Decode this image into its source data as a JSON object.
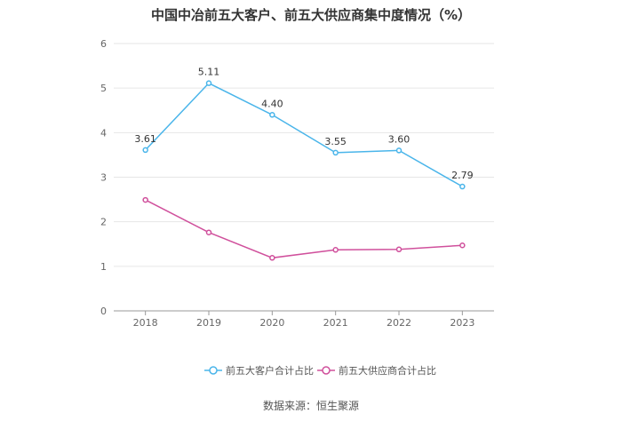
{
  "chart_data": {
    "type": "line",
    "title": "中国中冶前五大客户、前五大供应商集中度情况（%）",
    "categories": [
      "2018",
      "2019",
      "2020",
      "2021",
      "2022",
      "2023"
    ],
    "ylim": [
      0,
      6
    ],
    "yticks": [
      "0",
      "1",
      "2",
      "3",
      "4",
      "5",
      "6"
    ],
    "grid": true,
    "legend_position": "bottom",
    "series": [
      {
        "name": "前五大客户合计占比",
        "values": [
          3.61,
          5.11,
          4.4,
          3.55,
          3.6,
          2.79
        ],
        "labels": [
          "3.61",
          "5.11",
          "4.40",
          "3.55",
          "3.60",
          "2.79"
        ],
        "color": "#4ab5ea"
      },
      {
        "name": "前五大供应商合计占比",
        "values": [
          2.49,
          1.76,
          1.19,
          1.37,
          1.38,
          1.47
        ],
        "labels": [],
        "color": "#d0509c"
      }
    ]
  },
  "source": "数据来源：恒生聚源"
}
